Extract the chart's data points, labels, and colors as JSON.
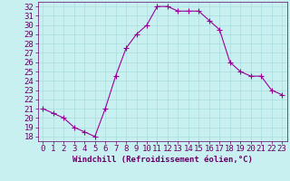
{
  "hours": [
    0,
    1,
    2,
    3,
    4,
    5,
    6,
    7,
    8,
    9,
    10,
    11,
    12,
    13,
    14,
    15,
    16,
    17,
    18,
    19,
    20,
    21,
    22,
    23
  ],
  "values": [
    21,
    20.5,
    20,
    19,
    18.5,
    18,
    21,
    24.5,
    27.5,
    29,
    30,
    32,
    32,
    31.5,
    31.5,
    31.5,
    30.5,
    29.5,
    26,
    25,
    24.5,
    24.5,
    23,
    22.5
  ],
  "line_color": "#990099",
  "marker_color": "#990099",
  "bg_color": "#c8f0f0",
  "grid_color": "#aadddd",
  "xlabel": "Windchill (Refroidissement éolien,°C)",
  "xlim": [
    -0.5,
    23.5
  ],
  "ylim": [
    17.5,
    32.5
  ],
  "yticks": [
    18,
    19,
    20,
    21,
    22,
    23,
    24,
    25,
    26,
    27,
    28,
    29,
    30,
    31,
    32
  ],
  "xticks": [
    0,
    1,
    2,
    3,
    4,
    5,
    6,
    7,
    8,
    9,
    10,
    11,
    12,
    13,
    14,
    15,
    16,
    17,
    18,
    19,
    20,
    21,
    22,
    23
  ],
  "tick_color": "#660066",
  "label_color": "#660066",
  "font_size": 6.5
}
